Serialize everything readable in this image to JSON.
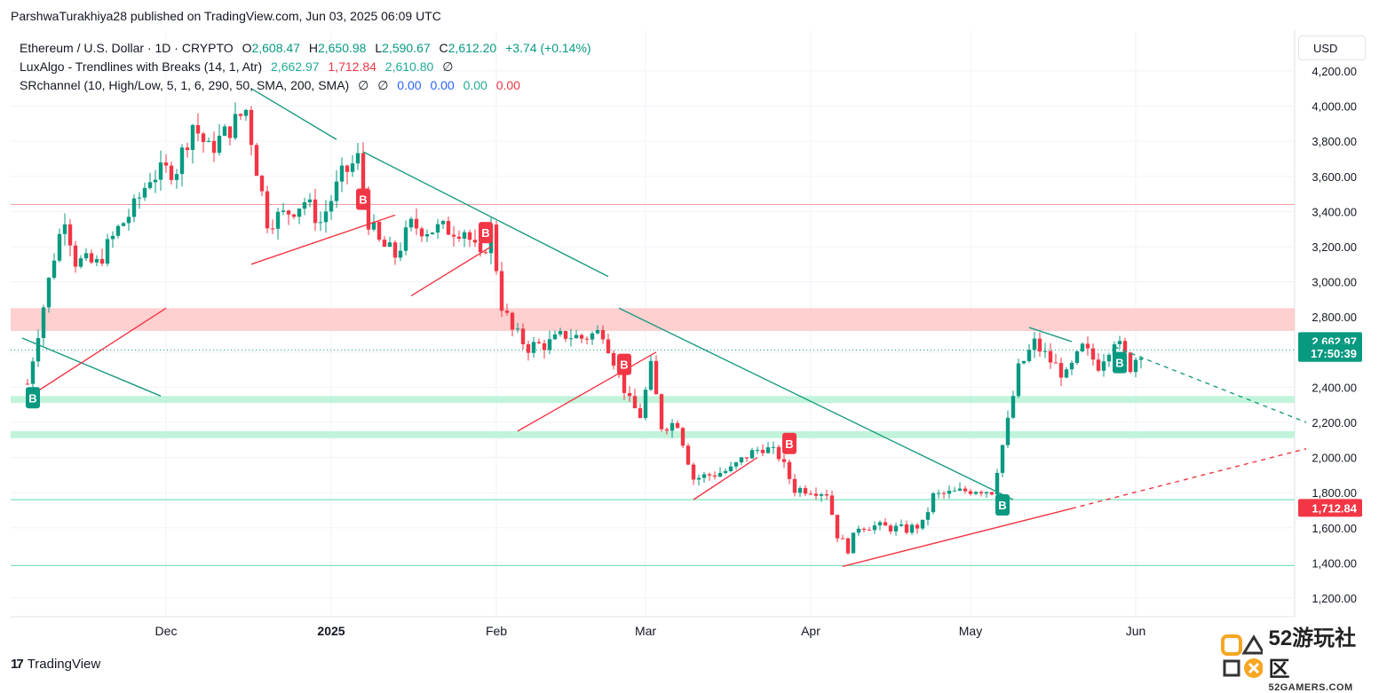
{
  "publisher": "ParshwaTurakhiya28 published on TradingView.com, Jun 03, 2025 06:09 UTC",
  "legend": {
    "symbol": "Ethereum / U.S. Dollar · 1D · CRYPTO",
    "o_label": "O",
    "o": "2,608.47",
    "h_label": "H",
    "h": "2,650.98",
    "l_label": "L",
    "l": "2,590.67",
    "c_label": "C",
    "c": "2,612.20",
    "change": "+3.74 (+0.14%)",
    "ind1_name": "LuxAlgo - Trendlines with Breaks (14, 1, Atr)",
    "ind1_v1": "2,662.97",
    "ind1_v2": "1,712.84",
    "ind1_v3": "2,610.80",
    "ind1_v4": "∅",
    "ind2_name": "SRchannel (10, High/Low, 5, 1, 6, 290, 50, SMA, 200, SMA)",
    "ind2_v1": "∅",
    "ind2_v2": "∅",
    "ind2_v3": "0.00",
    "ind2_v4": "0.00",
    "ind2_v5": "0.00",
    "ind2_v6": "0.00"
  },
  "currency": "USD",
  "footer": {
    "logo": "17",
    "brand": "TradingView"
  },
  "watermark": {
    "big": "52游玩社区",
    "small": "52GAMERS.COM"
  },
  "colors": {
    "up": "#089981",
    "down": "#f23645",
    "resistance": "#ffc8c8",
    "support": "#b6f2d4"
  },
  "chart_data": {
    "type": "candlestick",
    "y_ticks": [
      "1,200.00",
      "1,400.00",
      "1,600.00",
      "1,800.00",
      "2,000.00",
      "2,200.00",
      "2,400.00",
      "2,600.00",
      "2,800.00",
      "3,000.00",
      "3,200.00",
      "3,400.00",
      "3,600.00",
      "3,800.00",
      "4,000.00",
      "4,200.00"
    ],
    "x_ticks": [
      "Dec",
      "2025",
      "Feb",
      "Mar",
      "Apr",
      "May",
      "Jun"
    ],
    "ylim": [
      1130,
      4280
    ],
    "price_tags": [
      {
        "label": "2,662.97",
        "value": 2663,
        "color": "#089981"
      },
      {
        "label": "17:50:39",
        "value": 2595,
        "color": "#089981"
      },
      {
        "label": "1,712.84",
        "value": 1713,
        "color": "#f23645"
      }
    ],
    "close_path": [
      [
        "2024-11-05",
        2420
      ],
      [
        "2024-11-07",
        2720
      ],
      [
        "2024-11-10",
        3150
      ],
      [
        "2024-11-12",
        3380
      ],
      [
        "2024-11-14",
        3120
      ],
      [
        "2024-11-18",
        3100
      ],
      [
        "2024-11-22",
        3300
      ],
      [
        "2024-11-25",
        3420
      ],
      [
        "2024-11-28",
        3600
      ],
      [
        "2024-12-03",
        3650
      ],
      [
        "2024-12-06",
        3900
      ],
      [
        "2024-12-09",
        3750
      ],
      [
        "2024-12-12",
        3840
      ],
      [
        "2024-12-16",
        3980
      ],
      [
        "2024-12-18",
        3650
      ],
      [
        "2024-12-20",
        3350
      ],
      [
        "2024-12-23",
        3380
      ],
      [
        "2024-12-27",
        3460
      ],
      [
        "2024-12-30",
        3340
      ],
      [
        "2025-01-03",
        3600
      ],
      [
        "2025-01-06",
        3700
      ],
      [
        "2025-01-08",
        3350
      ],
      [
        "2025-01-10",
        3220
      ],
      [
        "2025-01-13",
        3150
      ],
      [
        "2025-01-16",
        3320
      ],
      [
        "2025-01-19",
        3300
      ],
      [
        "2025-01-22",
        3300
      ],
      [
        "2025-01-26",
        3300
      ],
      [
        "2025-01-29",
        3120
      ],
      [
        "2025-01-31",
        3300
      ],
      [
        "2025-02-02",
        2870
      ],
      [
        "2025-02-04",
        2720
      ],
      [
        "2025-02-07",
        2630
      ],
      [
        "2025-02-11",
        2650
      ],
      [
        "2025-02-14",
        2700
      ],
      [
        "2025-02-17",
        2680
      ],
      [
        "2025-02-21",
        2720
      ],
      [
        "2025-02-24",
        2480
      ],
      [
        "2025-02-26",
        2310
      ],
      [
        "2025-02-28",
        2240
      ],
      [
        "2025-03-02",
        2510
      ],
      [
        "2025-03-04",
        2180
      ],
      [
        "2025-03-07",
        2200
      ],
      [
        "2025-03-10",
        1880
      ],
      [
        "2025-03-13",
        1900
      ],
      [
        "2025-03-17",
        1930
      ],
      [
        "2025-03-20",
        2010
      ],
      [
        "2025-03-23",
        2060
      ],
      [
        "2025-03-26",
        2010
      ],
      [
        "2025-03-29",
        1820
      ],
      [
        "2025-04-01",
        1820
      ],
      [
        "2025-04-04",
        1800
      ],
      [
        "2025-04-06",
        1560
      ],
      [
        "2025-04-08",
        1480
      ],
      [
        "2025-04-10",
        1610
      ],
      [
        "2025-04-13",
        1610
      ],
      [
        "2025-04-16",
        1600
      ],
      [
        "2025-04-19",
        1590
      ],
      [
        "2025-04-22",
        1620
      ],
      [
        "2025-04-24",
        1780
      ],
      [
        "2025-04-28",
        1800
      ],
      [
        "2025-05-02",
        1820
      ],
      [
        "2025-05-05",
        1810
      ],
      [
        "2025-05-08",
        2200
      ],
      [
        "2025-05-10",
        2500
      ],
      [
        "2025-05-13",
        2650
      ],
      [
        "2025-05-16",
        2550
      ],
      [
        "2025-05-19",
        2460
      ],
      [
        "2025-05-22",
        2620
      ],
      [
        "2025-05-25",
        2530
      ],
      [
        "2025-05-28",
        2680
      ],
      [
        "2025-05-31",
        2520
      ],
      [
        "2025-06-02",
        2610
      ]
    ],
    "trendlines_teal": [
      [
        [
          "2024-11-04",
          2680
        ],
        [
          "2024-11-30",
          2350
        ]
      ],
      [
        [
          "2024-12-17",
          4100
        ],
        [
          "2025-01-02",
          3810
        ]
      ],
      [
        [
          "2025-01-07",
          3740
        ],
        [
          "2025-02-22",
          3030
        ]
      ],
      [
        [
          "2025-02-24",
          2850
        ],
        [
          "2025-05-09",
          1760
        ]
      ],
      [
        [
          "2025-05-12",
          2740
        ],
        [
          "2025-05-20",
          2660
        ]
      ]
    ],
    "trendlines_teal_dashed": [
      [
        [
          "2025-05-28",
          2630
        ],
        [
          "2025-07-03",
          2200
        ]
      ]
    ],
    "trendlines_red": [
      [
        [
          "2024-11-07",
          2380
        ],
        [
          "2024-12-01",
          2850
        ]
      ],
      [
        [
          "2024-12-17",
          3100
        ],
        [
          "2025-01-13",
          3380
        ]
      ],
      [
        [
          "2025-01-16",
          2920
        ],
        [
          "2025-01-31",
          3200
        ]
      ],
      [
        [
          "2025-02-05",
          2150
        ],
        [
          "2025-03-03",
          2600
        ]
      ],
      [
        [
          "2025-03-10",
          1760
        ],
        [
          "2025-03-22",
          2000
        ]
      ],
      [
        [
          "2025-04-07",
          1380
        ],
        [
          "2025-05-20",
          1710
        ]
      ]
    ],
    "trendlines_red_dashed": [
      [
        [
          "2025-05-20",
          1710
        ],
        [
          "2025-07-03",
          2050
        ]
      ]
    ],
    "break_markers": [
      {
        "label": "B",
        "date": "2024-11-06",
        "value": 2340,
        "color": "#089981"
      },
      {
        "label": "B",
        "date": "2025-01-07",
        "value": 3470,
        "color": "#f23645"
      },
      {
        "label": "B",
        "date": "2025-01-30",
        "value": 3280,
        "color": "#f23645"
      },
      {
        "label": "B",
        "date": "2025-02-25",
        "value": 2530,
        "color": "#f23645"
      },
      {
        "label": "B",
        "date": "2025-03-28",
        "value": 2080,
        "color": "#f23645"
      },
      {
        "label": "B",
        "date": "2025-05-07",
        "value": 1730,
        "color": "#089981"
      },
      {
        "label": "B",
        "date": "2025-05-29",
        "value": 2540,
        "color": "#089981"
      }
    ],
    "resistance_zone": [
      2720,
      2850
    ],
    "support_zones": [
      [
        2310,
        2350
      ],
      [
        2110,
        2150
      ]
    ],
    "support_lines": [
      1760,
      1385
    ],
    "resistance_line": 3440,
    "last_price_line": 2612
  }
}
